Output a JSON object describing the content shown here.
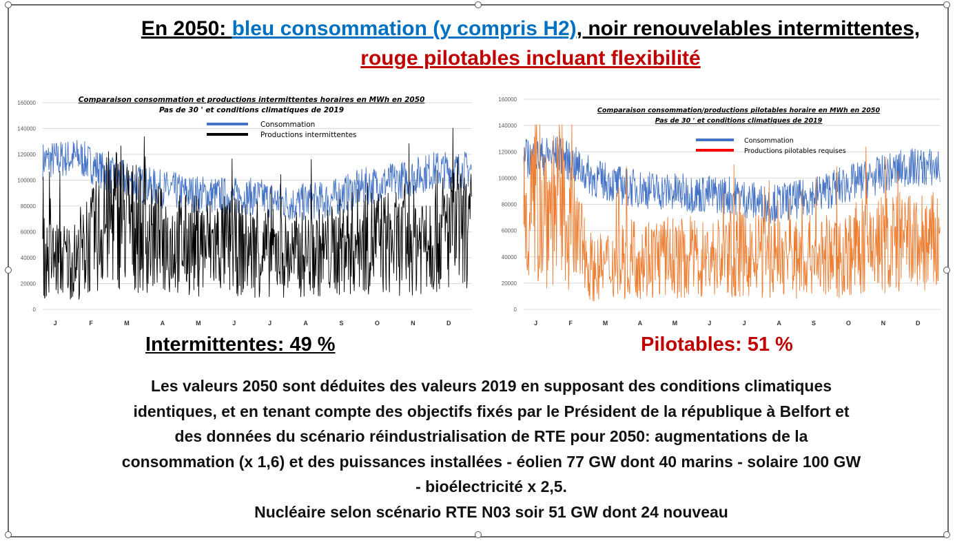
{
  "header": {
    "part1": "En 2050: ",
    "part2": "bleu consommation (y compris H2)",
    "part3": ", noir renouvelables intermittentes, ",
    "part4": "rouge  pilotables incluant flexibilité"
  },
  "colors": {
    "blue": "#0070c0",
    "red": "#c00000",
    "consumption": "#4472c4",
    "intermittent": "#000000",
    "pilotable": "#ed7d31"
  },
  "chart_data": [
    {
      "type": "line",
      "title": "Comparaison consommation et productions intermittentes horaires  en MWh en 2050",
      "subtitle": "Pas de 30 ' et conditions climatiques de 2019",
      "ylim": [
        0,
        160000
      ],
      "yticks": [
        "0",
        "20000",
        "40000",
        "60000",
        "80000",
        "100000",
        "120000",
        "140000",
        "160000"
      ],
      "categories": [
        "J",
        "F",
        "M",
        "A",
        "M",
        "J",
        "J",
        "A",
        "S",
        "O",
        "N",
        "D"
      ],
      "legend": [
        "Consommation",
        "Productions intermittentes"
      ],
      "legend_placement": "top-center",
      "series": [
        {
          "name": "Consommation",
          "monthly_avg": [
            115000,
            118000,
            102000,
            95000,
            90000,
            88000,
            87000,
            82000,
            85000,
            95000,
            100000,
            108000
          ]
        },
        {
          "name": "Productions intermittentes",
          "monthly_avg": [
            40000,
            38000,
            75000,
            55000,
            50000,
            50000,
            45000,
            42000,
            45000,
            55000,
            50000,
            60000
          ]
        }
      ]
    },
    {
      "type": "line",
      "title": "Comparaison consommation/productions pilotables horaire  en MWh en 2050",
      "subtitle": "Pas de 30 ' et conditions climatiques de 2019",
      "ylim": [
        0,
        160000
      ],
      "yticks": [
        "0",
        "20000",
        "40000",
        "60000",
        "80000",
        "100000",
        "120000",
        "140000",
        "160000"
      ],
      "categories": [
        "J",
        "F",
        "M",
        "A",
        "M",
        "J",
        "J",
        "A",
        "S",
        "O",
        "N",
        "D"
      ],
      "legend": [
        "Consommation",
        "Productions pilotables requises"
      ],
      "legend_placement": "top-right",
      "series": [
        {
          "name": "Consommation",
          "monthly_avg": [
            115000,
            118000,
            100000,
            93000,
            90000,
            88000,
            87000,
            80000,
            84000,
            93000,
            100000,
            108000
          ]
        },
        {
          "name": "Productions pilotables requises",
          "monthly_avg": [
            80000,
            80000,
            30000,
            40000,
            40000,
            38000,
            42000,
            40000,
            40000,
            40000,
            50000,
            50000
          ]
        }
      ]
    }
  ],
  "labels": {
    "left": "Intermittentes: 49 %",
    "right": "Pilotables: 51 %"
  },
  "paragraph": [
    "Les valeurs 2050 sont déduites des valeurs 2019 en supposant des conditions climatiques",
    "identiques, et en tenant compte des objectifs fixés par le Président de la république à Belfort et",
    "des données du scénario réindustrialisation de RTE pour 2050: augmentations de la",
    "consommation (x 1,6) et des puissances installées - éolien 77 GW dont 40 marins - solaire 100 GW",
    "- bioélectricité x 2,5.",
    "Nucléaire selon scénario RTE N03 soir 51 GW dont 24 nouveau"
  ]
}
